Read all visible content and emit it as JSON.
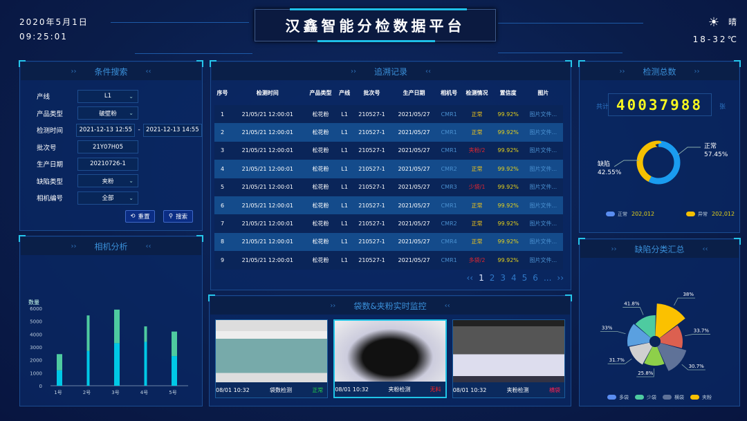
{
  "header": {
    "date": "2020年5月1日",
    "time": "09:25:01",
    "title": "汉鑫智能分检数据平台",
    "weather": "晴",
    "weather_icon": "sun-icon",
    "temp": "18-32℃"
  },
  "search": {
    "title": "条件搜索",
    "fields": [
      {
        "label": "产线",
        "value": "L1",
        "dropdown": true
      },
      {
        "label": "产品类型",
        "value": "破壁粉",
        "dropdown": true
      },
      {
        "label": "检测时间",
        "value": "2021-12-13 12:55",
        "value2": "2021-12-13 14:55",
        "dropdown": false
      },
      {
        "label": "批次号",
        "value": "21Y07H05",
        "dropdown": false
      },
      {
        "label": "生产日期",
        "value": "20210726-1",
        "dropdown": false
      },
      {
        "label": "缺陷类型",
        "value": "夹粉",
        "dropdown": true
      },
      {
        "label": "相机编号",
        "value": "全部",
        "dropdown": true
      }
    ],
    "reset": "重置",
    "search": "搜索",
    "dash": "-"
  },
  "camera": {
    "title": "相机分析",
    "chart_data": {
      "type": "bar",
      "stacked": true,
      "ylabel": "数量",
      "ylim": [
        0,
        6000
      ],
      "yticks": [
        0,
        1000,
        2000,
        3000,
        4000,
        5000,
        6000
      ],
      "categories": [
        "1号",
        "2号",
        "3号",
        "4号",
        "5号"
      ],
      "series": [
        {
          "values": [
            1200,
            2700,
            3300,
            3400,
            2300
          ],
          "color": "#00c8e6"
        },
        {
          "values": [
            1250,
            2750,
            2600,
            1200,
            1900
          ],
          "color": "#4ecba0"
        }
      ]
    }
  },
  "records": {
    "title": "追溯记录",
    "columns": [
      "序号",
      "检测时间",
      "产品类型",
      "产线",
      "批次号",
      "生产日期",
      "相机号",
      "检测情况",
      "置信度",
      "图片"
    ],
    "rows": [
      [
        "1",
        "21/05/21 12:00:01",
        "松花粉",
        "L1",
        "210527-1",
        "2021/05/27",
        "CMR1",
        "正常",
        "99.92%",
        "图片文件..."
      ],
      [
        "2",
        "21/05/21 12:00:01",
        "松花粉",
        "L1",
        "210527-1",
        "2021/05/27",
        "CMR1",
        "正常",
        "99.92%",
        "图片文件..."
      ],
      [
        "3",
        "21/05/21 12:00:01",
        "松花粉",
        "L1",
        "210527-1",
        "2021/05/27",
        "CMR1",
        "夹粉/2",
        "99.92%",
        "图片文件..."
      ],
      [
        "4",
        "21/05/21 12:00:01",
        "松花粉",
        "L1",
        "210527-1",
        "2021/05/27",
        "CMR2",
        "正常",
        "99.92%",
        "图片文件..."
      ],
      [
        "5",
        "21/05/21 12:00:01",
        "松花粉",
        "L1",
        "210527-1",
        "2021/05/27",
        "CMR3",
        "少袋/1",
        "99.92%",
        "图片文件..."
      ],
      [
        "6",
        "21/05/21 12:00:01",
        "松花粉",
        "L1",
        "210527-1",
        "2021/05/27",
        "CMR1",
        "正常",
        "99.92%",
        "图片文件..."
      ],
      [
        "7",
        "21/05/21 12:00:01",
        "松花粉",
        "L1",
        "210527-1",
        "2021/05/27",
        "CMR2",
        "正常",
        "99.92%",
        "图片文件..."
      ],
      [
        "8",
        "21/05/21 12:00:01",
        "松花粉",
        "L1",
        "210527-1",
        "2021/05/27",
        "CMR4",
        "正常",
        "99.92%",
        "图片文件..."
      ],
      [
        "9",
        "21/05/21 12:00:01",
        "松花粉",
        "L1",
        "210527-1",
        "2021/05/27",
        "CMR1",
        "多袋/2",
        "99.92%",
        "图片文件..."
      ]
    ],
    "pages": [
      "1",
      "2",
      "3",
      "4",
      "5",
      "6",
      "..."
    ],
    "current_page": "1",
    "colors": {
      "normal": "#f0c419",
      "defect": "#e0262f",
      "camera": "#4a90d0",
      "confidence": "#e6d21a"
    }
  },
  "monitor": {
    "title": "袋数&夹粉实时监控",
    "cards": [
      {
        "time": "08/01 10:32",
        "type": "袋数检测",
        "status": "正常",
        "status_color": "#22d04a"
      },
      {
        "time": "08/01 10:32",
        "type": "夹粉检测",
        "status": "无料",
        "status_color": "#ff2020"
      },
      {
        "time": "08/01 10:32",
        "type": "夹粉检测",
        "status": "横袋",
        "status_color": "#ff2050"
      }
    ]
  },
  "total": {
    "title": "检测总数",
    "prefix": "共计",
    "count": "40037988",
    "unit": "张",
    "chart_data": {
      "type": "pie",
      "donut": true,
      "slices": [
        {
          "label": "正常",
          "value": 57.45,
          "pct": "57.45%",
          "color": "#1a9cf0"
        },
        {
          "label": "缺陷",
          "value": 42.55,
          "pct": "42.55%",
          "color": "#f5c000"
        }
      ]
    },
    "legend": [
      {
        "label": "正常",
        "value": "202,012",
        "color": "#5a8df0"
      },
      {
        "label": "异常",
        "value": "202,012",
        "color": "#f5c000"
      }
    ]
  },
  "defects": {
    "title": "缺陷分类汇总",
    "chart_data": {
      "type": "pie",
      "rose": true,
      "slices": [
        {
          "pct": "38%",
          "value": 38,
          "color": "#fbc100"
        },
        {
          "pct": "33.7%",
          "value": 33.7,
          "color": "#dc6050"
        },
        {
          "pct": "30.7%",
          "value": 30.7,
          "color": "#5f7298"
        },
        {
          "pct": "25.8%",
          "value": 25.8,
          "color": "#8ed04a"
        },
        {
          "pct": "31.7%",
          "value": 31.7,
          "color": "#d0d0d0"
        },
        {
          "pct": "33%",
          "value": 33,
          "color": "#5aa0e0"
        },
        {
          "pct": "41.8%",
          "value": 41.8,
          "color": "#4ecba0"
        }
      ]
    },
    "legend": [
      {
        "label": "多袋",
        "color": "#5a8df0"
      },
      {
        "label": "少袋",
        "color": "#4ecba0"
      },
      {
        "label": "横袋",
        "color": "#5f7298"
      },
      {
        "label": "夹粉",
        "color": "#fbc100"
      }
    ]
  }
}
